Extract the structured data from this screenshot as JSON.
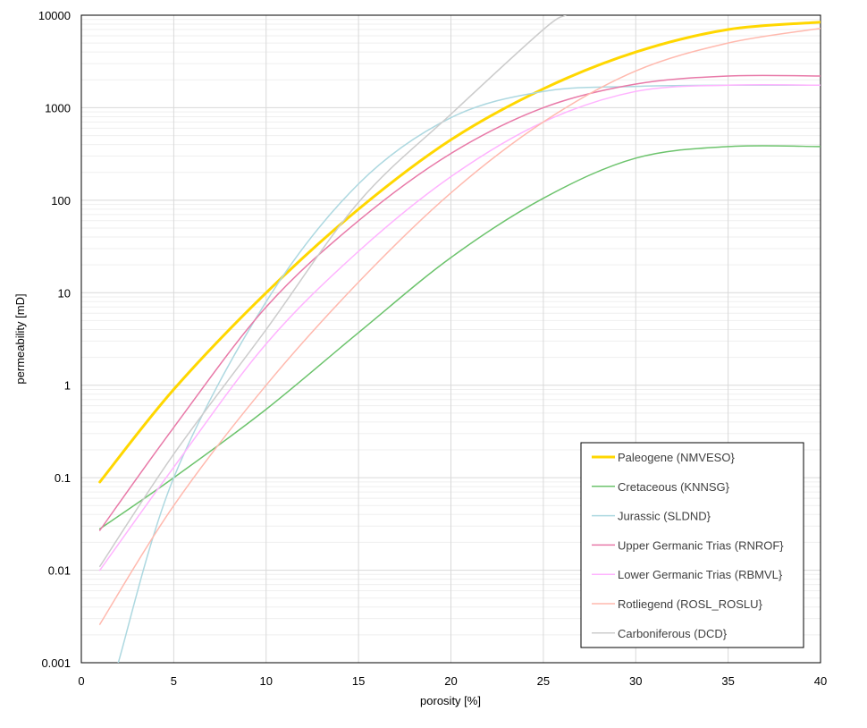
{
  "chart_data": {
    "type": "line",
    "xlabel": "porosity [%]",
    "ylabel": "permeability [mD]",
    "xlim": [
      0,
      40
    ],
    "ylim": [
      0.001,
      10000
    ],
    "y_scale": "log",
    "grid": true,
    "legend_position": "bottom-right",
    "x_ticks": [
      "0",
      "5",
      "10",
      "15",
      "20",
      "25",
      "30",
      "35",
      "40"
    ],
    "y_ticks": [
      "0.001",
      "0.01",
      "0.1",
      "1",
      "10",
      "100",
      "1000",
      "10000"
    ],
    "series": [
      {
        "name": "Paleogene (NMVESO}",
        "color": "#FFD700",
        "x": [
          1,
          5,
          10,
          15,
          20,
          25,
          30,
          35,
          40
        ],
        "values": [
          0.09,
          0.9,
          10,
          80,
          450,
          1600,
          4000,
          7000,
          8400
        ]
      },
      {
        "name": "Cretaceous (KNNSG}",
        "color": "#6CC36C",
        "x": [
          1,
          5,
          10,
          15,
          20,
          25,
          30,
          35,
          40
        ],
        "values": [
          0.028,
          0.1,
          0.55,
          3.7,
          24,
          105,
          285,
          380,
          380
        ]
      },
      {
        "name": "Jurassic (SLDND}",
        "color": "#ADD8E0",
        "x": [
          2,
          5,
          10,
          15,
          20,
          25,
          30,
          35,
          40
        ],
        "values": [
          0.001,
          0.1,
          8,
          150,
          780,
          1500,
          1700,
          1750,
          1750
        ]
      },
      {
        "name": "Upper Germanic Trias (RNROF}",
        "color": "#E879A8",
        "x": [
          1,
          5,
          10,
          15,
          20,
          25,
          30,
          35,
          40
        ],
        "values": [
          0.027,
          0.35,
          7,
          60,
          320,
          1000,
          1800,
          2200,
          2200
        ]
      },
      {
        "name": "Lower Germanic Trias (RBMVL}",
        "color": "#FFB3FF",
        "x": [
          1,
          5,
          10,
          15,
          20,
          25,
          30,
          35,
          40
        ],
        "values": [
          0.01,
          0.13,
          2.8,
          28,
          180,
          700,
          1500,
          1750,
          1750
        ]
      },
      {
        "name": "Rotliegend (ROSL_ROSLU}",
        "color": "#FFB9AE",
        "x": [
          1,
          5,
          10,
          15,
          20,
          25,
          30,
          35,
          40
        ],
        "values": [
          0.0026,
          0.05,
          1,
          13,
          120,
          700,
          2500,
          5000,
          7200
        ]
      },
      {
        "name": "Carboniferous (DCD}",
        "color": "#CCCCCC",
        "x": [
          1,
          5,
          10,
          15,
          20,
          25,
          26.2
        ],
        "values": [
          0.011,
          0.18,
          4,
          95,
          850,
          7000,
          10000
        ]
      }
    ]
  }
}
